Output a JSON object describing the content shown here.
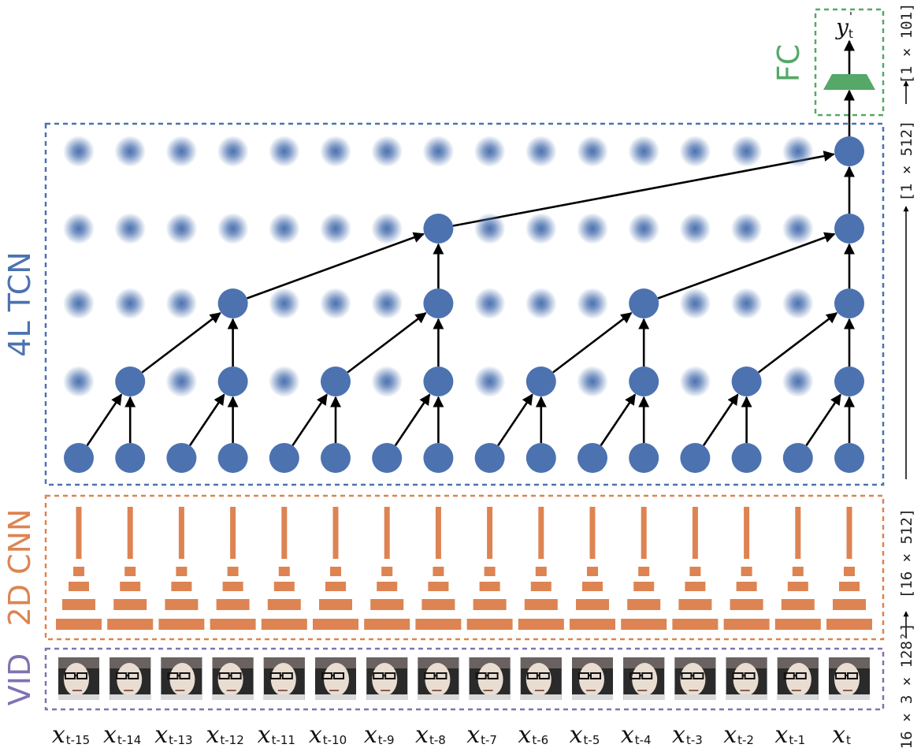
{
  "blocks": {
    "fc": {
      "label": "FC",
      "color": "#55a868"
    },
    "tcn": {
      "label": "4L TCN",
      "color": "#4c72b0"
    },
    "cnn": {
      "label": "2D CNN",
      "color": "#dd8452"
    },
    "vid": {
      "label": "VID",
      "color": "#8172b2"
    }
  },
  "colors": {
    "node": "#4c72b0",
    "faded_node": "#4c72b0",
    "edge": "#000000",
    "face_bg": "#2a2a2a",
    "face_skin": "#e9ddd2"
  },
  "output_label": {
    "base": "y",
    "sub": "t",
    "prime": "'"
  },
  "input_labels": [
    {
      "base": "x",
      "sub": "t-15"
    },
    {
      "base": "x",
      "sub": "t-14"
    },
    {
      "base": "x",
      "sub": "t-13"
    },
    {
      "base": "x",
      "sub": "t-12"
    },
    {
      "base": "x",
      "sub": "t-11"
    },
    {
      "base": "x",
      "sub": "t-10"
    },
    {
      "base": "x",
      "sub": "t-9"
    },
    {
      "base": "x",
      "sub": "t-8"
    },
    {
      "base": "x",
      "sub": "t-7"
    },
    {
      "base": "x",
      "sub": "t-6"
    },
    {
      "base": "x",
      "sub": "t-5"
    },
    {
      "base": "x",
      "sub": "t-4"
    },
    {
      "base": "x",
      "sub": "t-3"
    },
    {
      "base": "x",
      "sub": "t-2"
    },
    {
      "base": "x",
      "sub": "t-1"
    },
    {
      "base": "x",
      "sub": "t"
    }
  ],
  "dimensions": {
    "input": "[16 × 3 × 128²]",
    "cnn_out": "[16 × 512]",
    "tcn_out": "[1 × 512]",
    "fc_out": "[1 × 101]"
  },
  "tcn_layers": 4,
  "timesteps": 16,
  "frame_icon": "face-frame-icon",
  "layer_icon": "conv-layer-icon"
}
